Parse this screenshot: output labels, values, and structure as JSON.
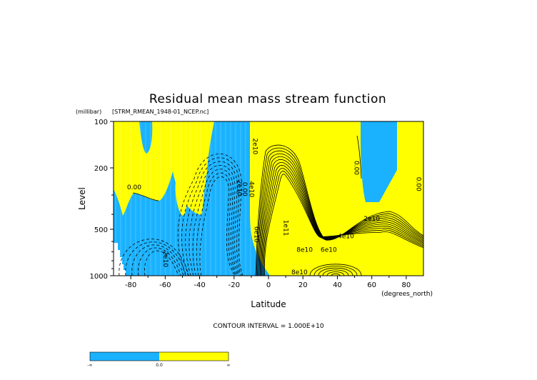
{
  "chart_data": {
    "type": "contour",
    "title": "Residual mean mass stream function",
    "source_file": "[STRM_RMEAN_1948-01_NCEP.nc]",
    "ylabel": "Level",
    "yunits": "(millibar)",
    "xlabel": "Latitude",
    "xunits": "(degrees_north)",
    "x_ticks": [
      -80,
      -60,
      -40,
      -20,
      0,
      20,
      40,
      60,
      80
    ],
    "y_ticks": [
      100,
      200,
      500,
      1000
    ],
    "xlim": [
      -90,
      90
    ],
    "ylim": [
      1000,
      100
    ],
    "y_scale": "log",
    "contour_interval_text": "CONTOUR INTERVAL = 1.000E+10",
    "contour_interval": 10000000000,
    "contour_labels": [
      {
        "text": "2e10",
        "lat": -9,
        "p": 145
      },
      {
        "text": "0.00",
        "lat": 50,
        "p": 200
      },
      {
        "text": "0.00",
        "lat": 86,
        "p": 255
      },
      {
        "text": "0.00",
        "lat": -78,
        "p": 275
      },
      {
        "text": "2e10",
        "lat": -18,
        "p": 270
      },
      {
        "text": "0.00",
        "lat": -15,
        "p": 275
      },
      {
        "text": "4e10",
        "lat": -11,
        "p": 275
      },
      {
        "text": "2e10",
        "lat": 60,
        "p": 440
      },
      {
        "text": "6e10",
        "lat": -8,
        "p": 540
      },
      {
        "text": "1e11",
        "lat": 9,
        "p": 490
      },
      {
        "text": "4e10",
        "lat": 45,
        "p": 570
      },
      {
        "text": "6e10",
        "lat": 35,
        "p": 700
      },
      {
        "text": "8e10",
        "lat": 21,
        "p": 700
      },
      {
        "text": "2e10",
        "lat": -61,
        "p": 780
      },
      {
        "text": "8e10",
        "lat": 18,
        "p": 980
      }
    ],
    "fill_colors": {
      "negative": "#1ab2ff",
      "positive": "#ffff00"
    },
    "colorbar": {
      "labels": [
        "-∞",
        "0.0",
        "∞"
      ],
      "colors": [
        "#1ab2ff",
        "#ffff00"
      ]
    }
  }
}
